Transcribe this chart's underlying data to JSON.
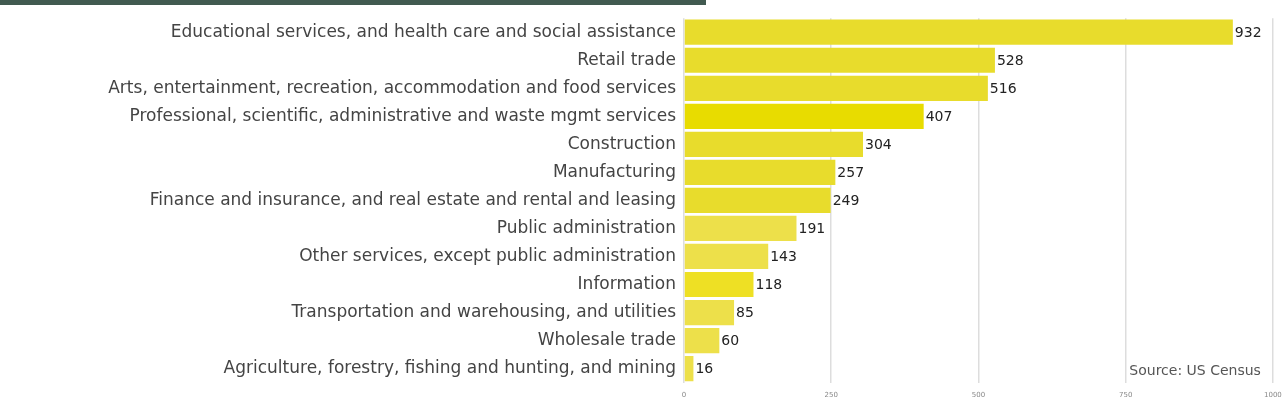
{
  "chart_data": {
    "type": "bar",
    "orientation": "horizontal",
    "categories": [
      "Educational services, and health care and social assistance",
      "Retail trade",
      "Arts, entertainment, recreation, accommodation and food services",
      "Professional, scientific, administrative and waste mgmt services",
      "Construction",
      "Manufacturing",
      "Finance and insurance, and real estate and rental and leasing",
      "Public administration",
      "Other services, except public administration",
      "Information",
      "Transportation and warehousing, and utilities",
      "Wholesale trade",
      "Agriculture, forestry, fishing and hunting, and mining"
    ],
    "values": [
      932,
      528,
      516,
      407,
      304,
      257,
      249,
      191,
      143,
      118,
      85,
      60,
      16
    ],
    "colors": [
      "#e8dc2c",
      "#e8dc2c",
      "#e8dc2c",
      "#e8dc00",
      "#e8dc2c",
      "#e8dc2c",
      "#e8dc2c",
      "#ede04a",
      "#ede04a",
      "#eee024",
      "#ede04a",
      "#ede04a",
      "#ede04a"
    ],
    "xlim": [
      0,
      1000
    ],
    "xticks": [
      0,
      250,
      500,
      750,
      1000
    ],
    "grid": "x",
    "data_labels": true,
    "annotations": [
      "Source: US Census"
    ]
  }
}
